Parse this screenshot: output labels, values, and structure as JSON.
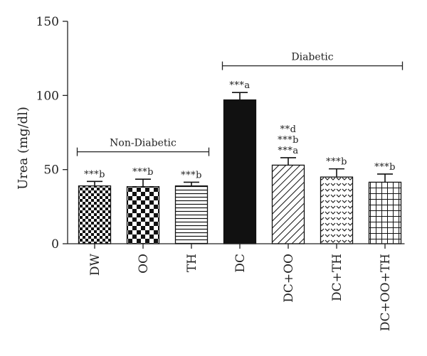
{
  "chart_data": {
    "type": "bar",
    "ylabel": "Urea (mg/dl)",
    "xlabel": "",
    "ylim": [
      0,
      150
    ],
    "yticks": [
      0,
      50,
      100,
      150
    ],
    "categories": [
      "DW",
      "OO",
      "TH",
      "DC",
      "DC+OO",
      "DC+TH",
      "DC+OO+TH"
    ],
    "values": [
      39,
      38.5,
      39,
      97,
      53,
      45,
      41.5
    ],
    "errors": [
      3,
      5,
      2.5,
      5,
      5,
      5.5,
      5.5
    ],
    "patterns": [
      "checker-small",
      "checker-large",
      "horizontal-lines",
      "solid",
      "diagonal-lines",
      "chevrons",
      "grid"
    ],
    "annotations": [
      [
        "***b"
      ],
      [
        "***b"
      ],
      [
        "***b"
      ],
      [
        "***a"
      ],
      [
        "**d",
        "***b",
        "***a"
      ],
      [
        "***b"
      ],
      [
        "***b"
      ]
    ],
    "groups": [
      {
        "label": "Non-Diabetic",
        "from": 0,
        "to": 2,
        "y": 62
      },
      {
        "label": "Diabetic",
        "from": 3,
        "to": 6,
        "y": 120
      }
    ]
  }
}
